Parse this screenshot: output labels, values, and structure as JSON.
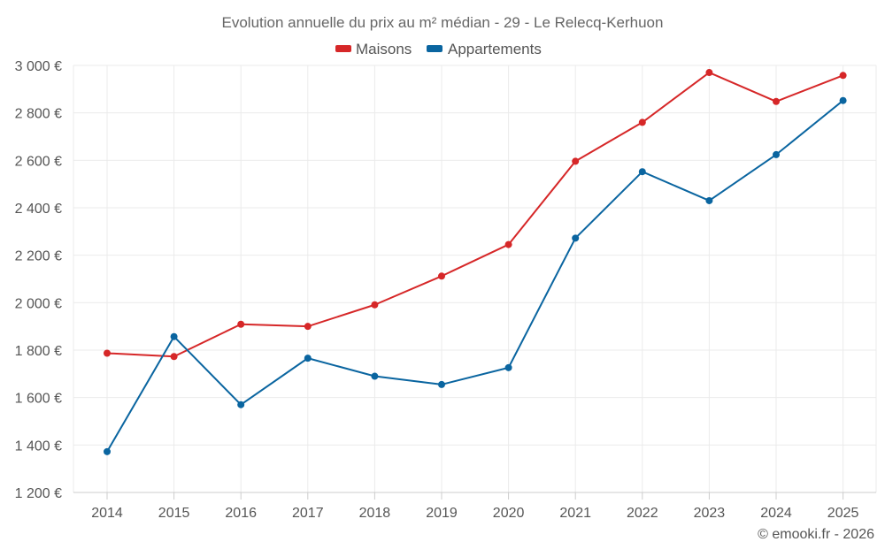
{
  "chart_data": {
    "type": "line",
    "title": "Evolution annuelle du prix au m² médian - 29 - Le Relecq-Kerhuon",
    "categories": [
      "2014",
      "2015",
      "2016",
      "2017",
      "2018",
      "2019",
      "2020",
      "2021",
      "2022",
      "2023",
      "2024",
      "2025"
    ],
    "series": [
      {
        "name": "Maisons",
        "color": "#d62728",
        "values": [
          1787,
          1773,
          1909,
          1900,
          1991,
          2112,
          2245,
          2596,
          2760,
          2970,
          2848,
          2958
        ]
      },
      {
        "name": "Appartements",
        "color": "#0a65a0",
        "values": [
          1372,
          1857,
          1570,
          1766,
          1690,
          1655,
          1726,
          2272,
          2552,
          2430,
          2624,
          2852
        ]
      }
    ],
    "ylim": [
      1200,
      3000
    ],
    "yticks": [
      1200,
      1400,
      1600,
      1800,
      2000,
      2200,
      2400,
      2600,
      2800,
      3000
    ],
    "ytick_labels": [
      "1 200 €",
      "1 400 €",
      "1 600 €",
      "1 800 €",
      "2 000 €",
      "2 200 €",
      "2 400 €",
      "2 600 €",
      "2 800 €",
      "3 000 €"
    ],
    "xlabel": "",
    "ylabel": "",
    "grid": true,
    "legend_position": "top-center"
  },
  "credit": "© emooki.fr - 2026"
}
